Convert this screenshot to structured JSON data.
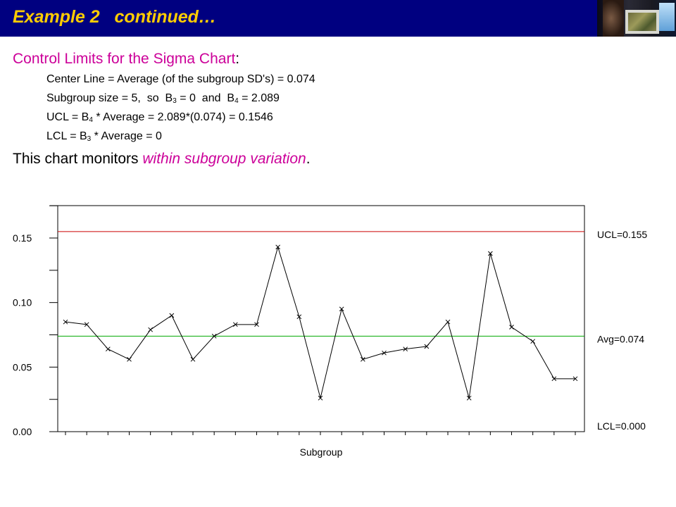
{
  "header": {
    "title": "Example 2   continued…",
    "photo_icon": "computer-monitor-photo"
  },
  "heading": {
    "text": "Control Limits for the Sigma Chart",
    "colon": ":"
  },
  "lines": {
    "center": "Center Line = Average (of the subgroup SD's) = 0.074",
    "subgroup_a": "Subgroup size = 5,  so  B",
    "subgroup_b3": "3",
    "subgroup_b": " = 0  and  B",
    "subgroup_b4": "4",
    "subgroup_c": " = 2.089",
    "ucl_a": "UCL = B",
    "ucl_sub": "4",
    "ucl_b": " * Average = 2.089*(0.074) = 0.1546",
    "lcl_a": "LCL = B",
    "lcl_sub": "3",
    "lcl_b": " * Average = 0"
  },
  "monitor": {
    "pre": "This chart monitors ",
    "em": "within subgroup variation",
    "post": "."
  },
  "colors": {
    "banner": "#000080",
    "title": "#ffcc00",
    "accent": "#cc0099",
    "ucl": "#cc0000",
    "avg": "#00aa00",
    "series": "#000000"
  },
  "chart_data": {
    "type": "line",
    "xlabel": "Subgroup",
    "ylabel": "",
    "ylim": [
      0,
      0.175
    ],
    "yticks": [
      0,
      0.05,
      0.1,
      0.15
    ],
    "ytick_labels": [
      "0.00",
      "0.05",
      "0.10",
      "0.15"
    ],
    "x": [
      1,
      2,
      3,
      4,
      5,
      6,
      7,
      8,
      9,
      10,
      11,
      12,
      13,
      14,
      15,
      16,
      17,
      18,
      19,
      20,
      21,
      22,
      23,
      24,
      25
    ],
    "values": [
      0.085,
      0.083,
      0.064,
      0.056,
      0.079,
      0.09,
      0.056,
      0.074,
      0.083,
      0.083,
      0.143,
      0.089,
      0.026,
      0.095,
      0.056,
      0.061,
      0.064,
      0.066,
      0.085,
      0.026,
      0.138,
      0.081,
      0.07,
      0.041,
      0.041
    ],
    "marker": "x",
    "reference_lines": [
      {
        "label": "UCL=0.155",
        "value": 0.155,
        "color": "#cc0000"
      },
      {
        "label": "Avg=0.074",
        "value": 0.074,
        "color": "#00aa00"
      },
      {
        "label": "LCL=0.000",
        "value": 0.0,
        "color": "#000000"
      }
    ],
    "grid": false
  }
}
